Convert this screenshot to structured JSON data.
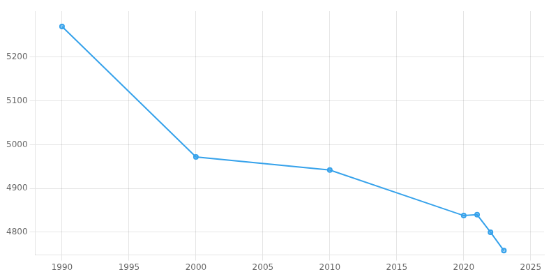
{
  "chart_data": {
    "type": "line",
    "x": [
      1990,
      2000,
      2010,
      2020,
      2021,
      2022,
      2023
    ],
    "values": [
      5270,
      4972,
      4942,
      4838,
      4840,
      4800,
      4758
    ],
    "xlim": [
      1988,
      2026
    ],
    "xticks": [
      1990,
      1995,
      2000,
      2005,
      2010,
      2015,
      2020,
      2025
    ],
    "ylim": [
      4748,
      5305
    ],
    "yticks": [
      4800,
      4900,
      5000,
      5100,
      5200
    ],
    "grid": true,
    "marker": "circle"
  }
}
